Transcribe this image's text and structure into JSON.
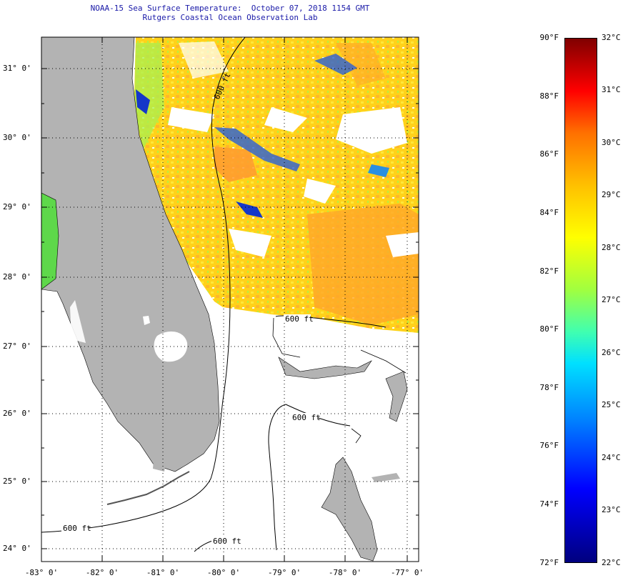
{
  "header": {
    "title_line1": "NOAA-15 Sea Surface Temperature:  October 07, 2018 1154 GMT",
    "title_line2": "Rutgers Coastal Ocean Observation Lab"
  },
  "map": {
    "lat_labels": [
      "31° 0'",
      "30° 0'",
      "29° 0'",
      "28° 0'",
      "27° 0'",
      "26° 0'",
      "25° 0'",
      "24° 0'"
    ],
    "lon_labels": [
      "-83° 0'",
      "-82° 0'",
      "-81° 0'",
      "-80° 0'",
      "-79° 0'",
      "-78° 0'",
      "-77° 0'"
    ],
    "contour_label": "600 ft",
    "colors": {
      "land": "#b3b3b3",
      "no_data": "#ffffff",
      "sst_warm": "#ffd21a",
      "sst_hot": "#ffa628",
      "sst_cool": "#2a5fd6"
    }
  },
  "colorbar": {
    "fahrenheit_labels": [
      "90°F",
      "88°F",
      "86°F",
      "84°F",
      "82°F",
      "80°F",
      "78°F",
      "76°F",
      "74°F",
      "72°F"
    ],
    "celsius_labels": [
      "32°C",
      "31°C",
      "30°C",
      "29°C",
      "28°C",
      "27°C",
      "26°C",
      "25°C",
      "24°C",
      "23°C",
      "22°C"
    ],
    "f_range": [
      72,
      90
    ],
    "c_range": [
      22,
      32
    ],
    "colors": [
      "#00007f",
      "#0000ff",
      "#0080ff",
      "#00e0ff",
      "#40ffb0",
      "#a0ff40",
      "#ffff00",
      "#ffc000",
      "#ff7000",
      "#ff0000",
      "#800000"
    ]
  }
}
